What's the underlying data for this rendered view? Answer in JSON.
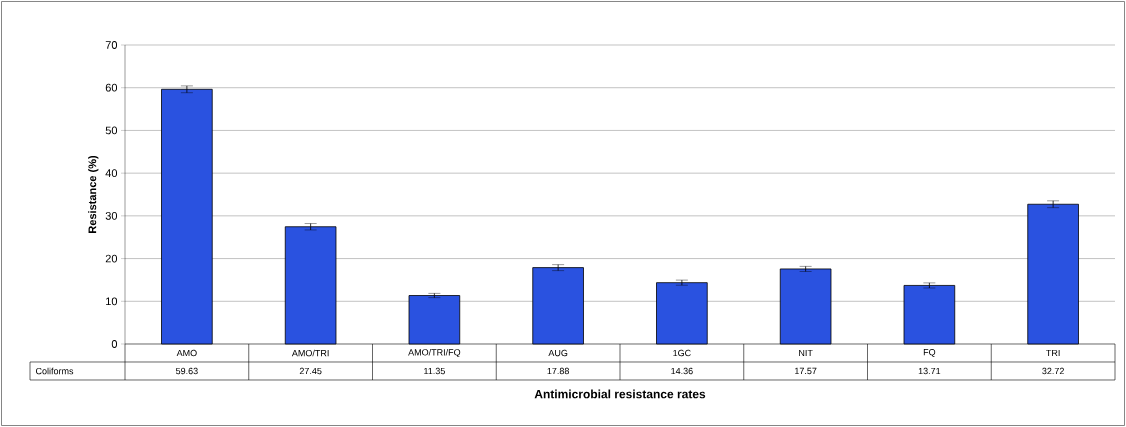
{
  "chart_data": {
    "type": "bar",
    "xlabel": "Antimicrobial resistance rates",
    "ylabel": "Resistance (%)",
    "categories": [
      "AMO",
      "AMO/TRI",
      "AMO/TRI/FQ",
      "AUG",
      "1GC",
      "NIT",
      "FQ",
      "TRI"
    ],
    "series": [
      {
        "name": "Coliforms",
        "color": "#2a52e0",
        "values": [
          59.63,
          27.45,
          11.35,
          17.88,
          14.36,
          17.57,
          13.71,
          32.72
        ],
        "errors": [
          0.8,
          0.75,
          0.5,
          0.7,
          0.6,
          0.6,
          0.6,
          0.8
        ]
      }
    ],
    "ylim": [
      0,
      70
    ],
    "yticks": [
      0,
      10,
      20,
      30,
      40,
      50,
      60,
      70
    ],
    "grid": "y",
    "data_labels": true
  }
}
